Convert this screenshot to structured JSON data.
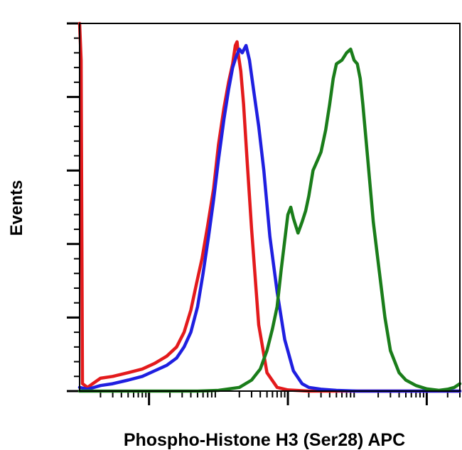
{
  "chart_data": {
    "type": "line",
    "title": "",
    "xlabel": "Phospho-Histone H3 (Ser28) APC",
    "ylabel": "Events",
    "x_scale": "log",
    "xlim": [
      1,
      300000
    ],
    "ylim": [
      0,
      100
    ],
    "x_major_ticks": [
      10,
      1000,
      100000
    ],
    "y_ticks": [
      0,
      20,
      40,
      60,
      80,
      100
    ],
    "grid": false,
    "legend": "none",
    "series": [
      {
        "color": "#e31a1c",
        "x": [
          1,
          1.05,
          1.1,
          1.3,
          2,
          3,
          5,
          8,
          12,
          18,
          25,
          32,
          40,
          48,
          58,
          70,
          85,
          100,
          120,
          140,
          160,
          175,
          185,
          195,
          210,
          230,
          260,
          300,
          380,
          500,
          700,
          1000,
          2000,
          10000,
          100000,
          300000
        ],
        "y": [
          100,
          90,
          2,
          1,
          3.5,
          4,
          5,
          6,
          7.5,
          9.5,
          12,
          16,
          22,
          29,
          36,
          45,
          55,
          67,
          77,
          84,
          89,
          94,
          95,
          91,
          87,
          78,
          62,
          44,
          18,
          5,
          1,
          0.3,
          0,
          0,
          0,
          0
        ]
      },
      {
        "color": "#1f1fe0",
        "x": [
          1,
          1.3,
          2,
          3,
          5,
          8,
          12,
          18,
          25,
          32,
          40,
          50,
          60,
          72,
          85,
          100,
          120,
          140,
          160,
          180,
          200,
          220,
          250,
          280,
          320,
          380,
          450,
          550,
          700,
          900,
          1200,
          1600,
          2000,
          3000,
          5000,
          10000,
          100000,
          300000
        ],
        "y": [
          1,
          0.5,
          1.5,
          2,
          3,
          4,
          5.5,
          7,
          9,
          12,
          16,
          23,
          32,
          42,
          52,
          63,
          74,
          82,
          88,
          91,
          93,
          92,
          94,
          90,
          82,
          72,
          60,
          42,
          27,
          14,
          5.5,
          2,
          1,
          0.5,
          0.2,
          0,
          0,
          0
        ]
      },
      {
        "color": "#1a7d1a",
        "x": [
          1,
          10,
          50,
          100,
          200,
          300,
          400,
          500,
          600,
          700,
          800,
          900,
          1000,
          1100,
          1200,
          1400,
          1600,
          1800,
          2000,
          2300,
          2700,
          3000,
          3500,
          4000,
          4500,
          5000,
          6000,
          7000,
          8000,
          9000,
          10000,
          11000,
          12000,
          14000,
          17000,
          20000,
          25000,
          30000,
          40000,
          50000,
          70000,
          100000,
          150000,
          200000,
          250000,
          300000
        ],
        "y": [
          0,
          0,
          0,
          0.2,
          1,
          3,
          6,
          11,
          17,
          23,
          33,
          41,
          48,
          50,
          47,
          43,
          46,
          49,
          53,
          60,
          63,
          65,
          71,
          78,
          85,
          89,
          90,
          92,
          93,
          90,
          89,
          85,
          78,
          64,
          46,
          35,
          20,
          11,
          5,
          3,
          1.5,
          0.6,
          0.2,
          0.5,
          1,
          2
        ]
      }
    ]
  }
}
